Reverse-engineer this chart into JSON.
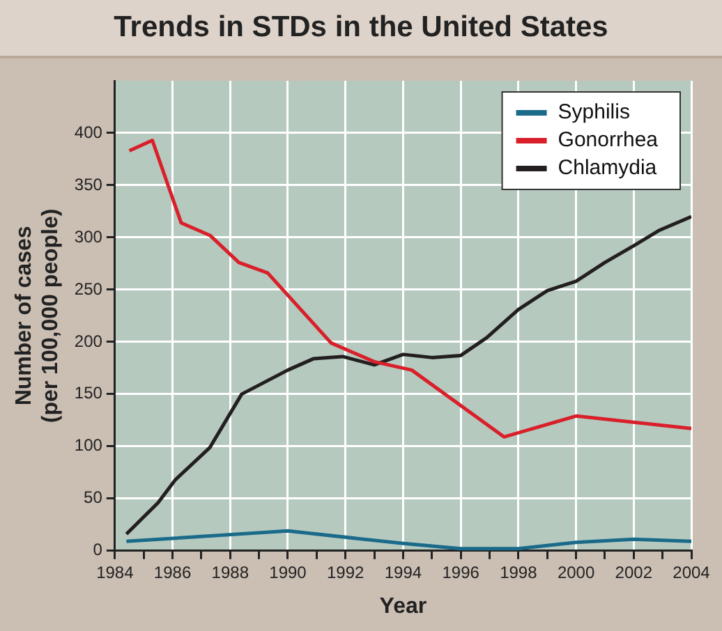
{
  "chart_data": {
    "type": "line",
    "title": "Trends in STDs in the United States",
    "xlabel": "Year",
    "ylabel": "Number of cases\n(per 100,000 people)",
    "xlim": [
      1984,
      2004
    ],
    "xticks": [
      1984,
      {
        "value": 1985,
        "label": null
      },
      1986,
      {
        "value": 1987,
        "label": null
      },
      1988,
      {
        "value": 1989,
        "label": null
      },
      1990,
      {
        "value": 1991,
        "label": null
      },
      1992,
      {
        "value": 1993,
        "label": null
      },
      1994,
      {
        "value": 1995,
        "label": null
      },
      1996,
      {
        "value": 1997,
        "label": null
      },
      1998,
      {
        "value": 1999,
        "label": null
      },
      2000,
      {
        "value": 2001,
        "label": null
      },
      2002,
      {
        "value": 2003,
        "label": null
      },
      2004
    ],
    "ylim": [
      0,
      450
    ],
    "yticks": [
      0,
      50,
      100,
      150,
      200,
      250,
      300,
      350,
      400
    ],
    "grid": true,
    "legend": "top right",
    "marker": "none",
    "line_style": "solid",
    "series": [
      {
        "name": "Syphilis",
        "color": "#1a6a8a",
        "x": [
          1984.4,
          1990,
          1994,
          1996,
          1998,
          2000,
          2002,
          2004
        ],
        "values": [
          9,
          19,
          7,
          2,
          2,
          8,
          11,
          9
        ]
      },
      {
        "name": "Gonorrhea",
        "color": "#d9202a",
        "x": [
          1984.5,
          1985.3,
          1986.3,
          1987.3,
          1988.3,
          1989.3,
          1991.5,
          1993,
          1994.3,
          1997.5,
          2000,
          2004
        ],
        "values": [
          383,
          393,
          314,
          302,
          276,
          266,
          199,
          181,
          173,
          109,
          129,
          117
        ]
      },
      {
        "name": "Chlamydia",
        "color": "#231f20",
        "x": [
          1984.4,
          1985.5,
          1986.1,
          1987.3,
          1988.4,
          1990,
          1990.9,
          1991.9,
          1993,
          1994,
          1995,
          1996,
          1996.9,
          1998,
          1999,
          2000,
          2001,
          2002,
          2002.9,
          2004
        ],
        "values": [
          16,
          46,
          68,
          99,
          150,
          173,
          184,
          186,
          178,
          188,
          185,
          187,
          204,
          231,
          249,
          258,
          276,
          292,
          307,
          320
        ]
      }
    ]
  }
}
